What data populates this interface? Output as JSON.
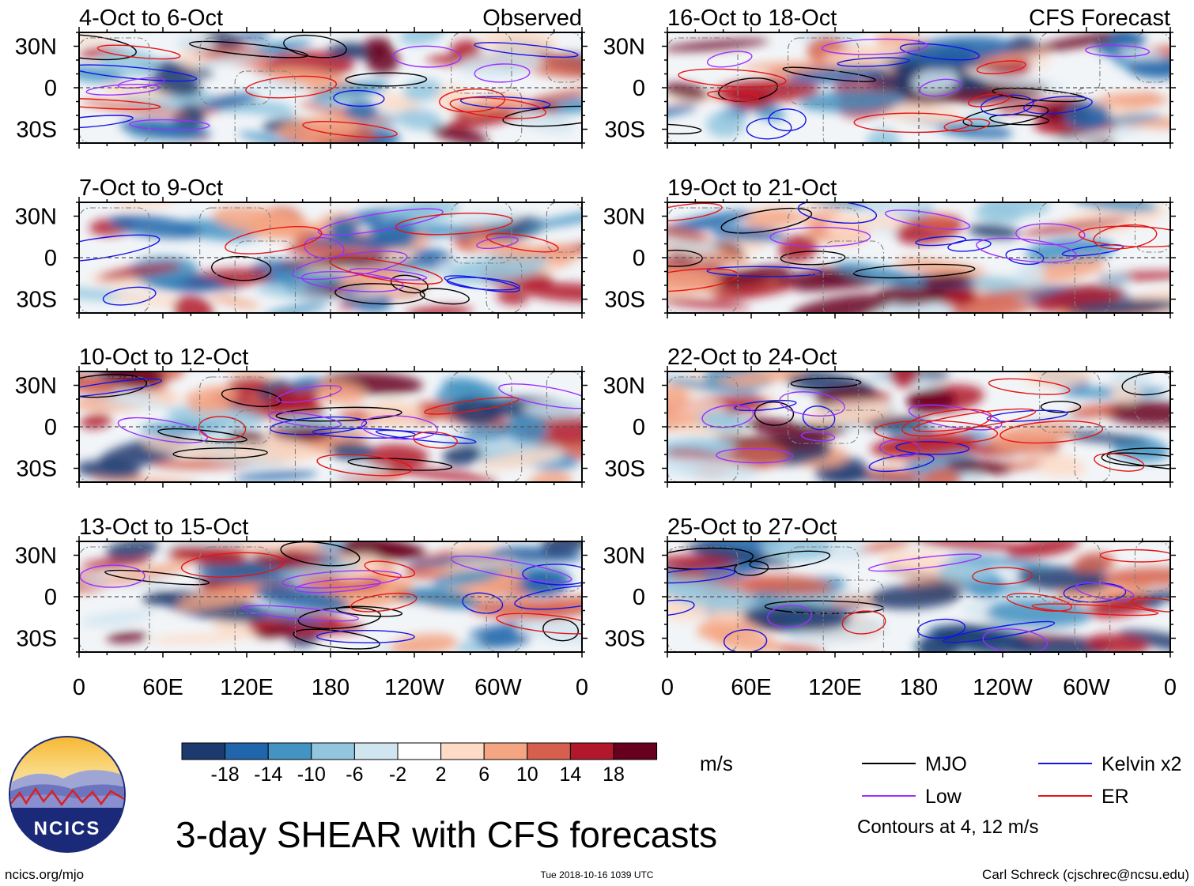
{
  "chart_data": {
    "type": "heatmap",
    "title": "3-day SHEAR with CFS forecasts",
    "units": "m/s",
    "columns": [
      {
        "header": "Observed",
        "panels": [
          {
            "label": "4-Oct to 6-Oct"
          },
          {
            "label": "7-Oct to 9-Oct"
          },
          {
            "label": "10-Oct to 12-Oct"
          },
          {
            "label": "13-Oct to 15-Oct"
          }
        ]
      },
      {
        "header": "CFS Forecast",
        "panels": [
          {
            "label": "16-Oct to 18-Oct"
          },
          {
            "label": "19-Oct to 21-Oct"
          },
          {
            "label": "22-Oct to 24-Oct"
          },
          {
            "label": "25-Oct to 27-Oct"
          }
        ]
      }
    ],
    "x_ticks": [
      "0",
      "60E",
      "120E",
      "180",
      "120W",
      "60W",
      "0"
    ],
    "x_values": [
      0,
      60,
      120,
      180,
      240,
      300,
      360
    ],
    "xlim": [
      0,
      360
    ],
    "y_ticks": [
      "30N",
      "0",
      "30S"
    ],
    "y_values": [
      30,
      0,
      -30
    ],
    "ylim": [
      -40,
      40
    ],
    "colorbar": {
      "levels": [
        "-18",
        "-14",
        "-10",
        "-6",
        "-2",
        "2",
        "6",
        "10",
        "14",
        "18"
      ],
      "colors": [
        "#1c3a6e",
        "#2166ac",
        "#4393c3",
        "#92c5de",
        "#d1e5f0",
        "#ffffff",
        "#fddbc7",
        "#f4a582",
        "#d6604d",
        "#b2182b",
        "#67001f"
      ]
    },
    "legend": [
      {
        "name": "MJO",
        "color": "#000000"
      },
      {
        "name": "Kelvin x2",
        "color": "#1414e6"
      },
      {
        "name": "Low",
        "color": "#9b30ff"
      },
      {
        "name": "ER",
        "color": "#e61414"
      }
    ],
    "contour_note": "Contours at 4, 12 m/s"
  },
  "logo": {
    "text": "NCICS"
  },
  "footer": {
    "website": "ncics.org/mjo",
    "timestamp": "Tue 2018-10-16 1039 UTC",
    "credit": "Carl Schreck (cjschrec@ncsu.edu)"
  }
}
